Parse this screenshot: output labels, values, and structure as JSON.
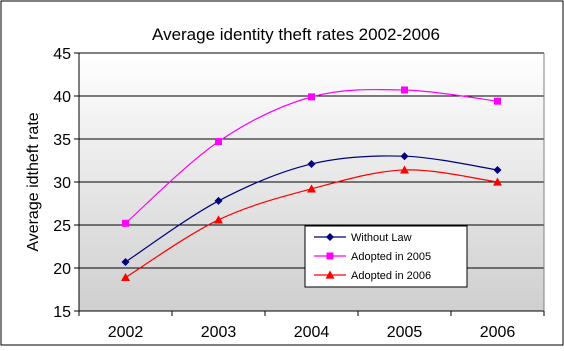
{
  "chart_data": {
    "type": "line",
    "title": "Average identity theft rates 2002-2006",
    "xlabel": "",
    "ylabel": "Average idtheft rate",
    "x": [
      "2002",
      "2003",
      "2004",
      "2005",
      "2006"
    ],
    "ylim": [
      15,
      45
    ],
    "yticks": [
      15,
      20,
      25,
      30,
      35,
      40,
      45
    ],
    "grid": true,
    "legend_position": "bottom-right, inside plot",
    "series": [
      {
        "name": "Without Law",
        "values": [
          20.7,
          27.8,
          32.1,
          33.0,
          31.4
        ],
        "color": "#000080",
        "marker": "diamond"
      },
      {
        "name": "Adopted in 2005",
        "values": [
          25.2,
          34.7,
          39.9,
          40.7,
          39.4
        ],
        "color": "#ff00ff",
        "marker": "square"
      },
      {
        "name": "Adopted in 2006",
        "values": [
          18.9,
          25.6,
          29.2,
          31.4,
          30.0
        ],
        "color": "#ff0000",
        "marker": "triangle"
      }
    ]
  }
}
